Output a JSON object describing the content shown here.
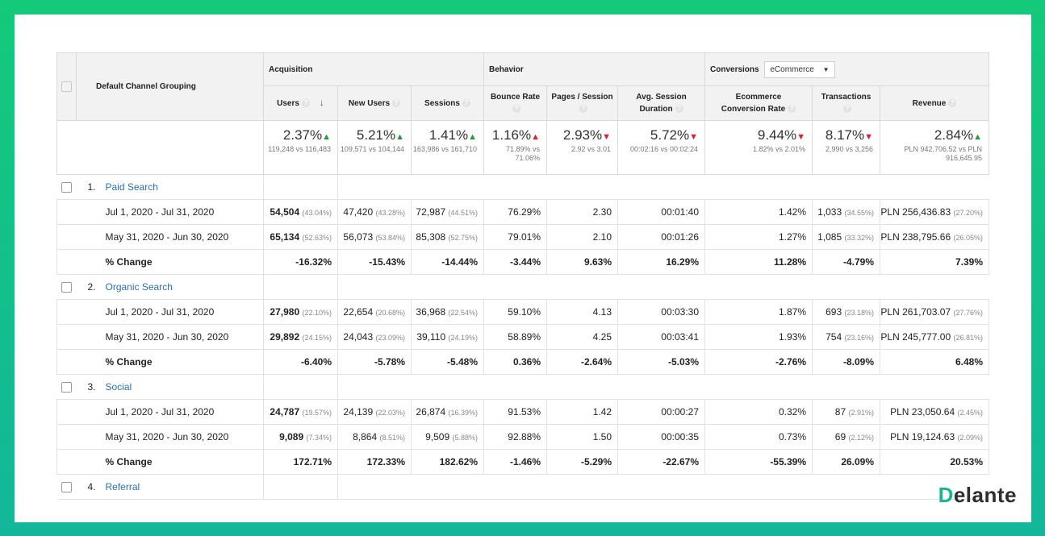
{
  "header": {
    "dimension": "Default Channel Grouping",
    "acquisition": "Acquisition",
    "behavior": "Behavior",
    "conversions": "Conversions",
    "conversions_select": "eCommerce",
    "columns": [
      "Users",
      "New Users",
      "Sessions",
      "Bounce Rate",
      "Pages / Session",
      "Avg. Session Duration",
      "Ecommerce Conversion Rate",
      "Transactions",
      "Revenue"
    ]
  },
  "totals": [
    {
      "value": "2.37%",
      "trend": "up",
      "detail": "119,248 vs 116,483"
    },
    {
      "value": "5.21%",
      "trend": "up",
      "detail": "109,571 vs 104,144"
    },
    {
      "value": "1.41%",
      "trend": "up",
      "detail": "163,986 vs 161,710"
    },
    {
      "value": "1.16%",
      "trend": "up-red",
      "detail": "71.89% vs 71.06%"
    },
    {
      "value": "2.93%",
      "trend": "down",
      "detail": "2.92 vs 3.01"
    },
    {
      "value": "5.72%",
      "trend": "down",
      "detail": "00:02:16 vs 00:02:24"
    },
    {
      "value": "9.44%",
      "trend": "down",
      "detail": "1.82% vs 2.01%"
    },
    {
      "value": "8.17%",
      "trend": "down",
      "detail": "2,990 vs 3,256"
    },
    {
      "value": "2.84%",
      "trend": "up",
      "detail": "PLN 942,706.52 vs PLN 916,645.95"
    }
  ],
  "groups": [
    {
      "index": "1.",
      "name": "Paid Search",
      "rows": [
        {
          "label": "Jul 1, 2020 - Jul 31, 2020",
          "users": "54,504",
          "users_pct": "(43.04%)",
          "new_users": "47,420",
          "new_users_pct": "(43.28%)",
          "sessions": "72,987",
          "sessions_pct": "(44.51%)",
          "bounce": "76.29%",
          "pps": "2.30",
          "dur": "00:01:40",
          "ecr": "1.42%",
          "trans": "1,033",
          "trans_pct": "(34.55%)",
          "rev": "PLN 256,436.83",
          "rev_pct": "(27.20%)"
        },
        {
          "label": "May 31, 2020 - Jun 30, 2020",
          "users": "65,134",
          "users_pct": "(52.63%)",
          "new_users": "56,073",
          "new_users_pct": "(53.84%)",
          "sessions": "85,308",
          "sessions_pct": "(52.75%)",
          "bounce": "79.01%",
          "pps": "2.10",
          "dur": "00:01:26",
          "ecr": "1.27%",
          "trans": "1,085",
          "trans_pct": "(33.32%)",
          "rev": "PLN 238,795.66",
          "rev_pct": "(26.05%)"
        }
      ],
      "change": {
        "label": "% Change",
        "values": [
          "-16.32%",
          "-15.43%",
          "-14.44%",
          "-3.44%",
          "9.63%",
          "16.29%",
          "11.28%",
          "-4.79%",
          "7.39%"
        ]
      }
    },
    {
      "index": "2.",
      "name": "Organic Search",
      "rows": [
        {
          "label": "Jul 1, 2020 - Jul 31, 2020",
          "users": "27,980",
          "users_pct": "(22.10%)",
          "new_users": "22,654",
          "new_users_pct": "(20.68%)",
          "sessions": "36,968",
          "sessions_pct": "(22.54%)",
          "bounce": "59.10%",
          "pps": "4.13",
          "dur": "00:03:30",
          "ecr": "1.87%",
          "trans": "693",
          "trans_pct": "(23.18%)",
          "rev": "PLN 261,703.07",
          "rev_pct": "(27.76%)"
        },
        {
          "label": "May 31, 2020 - Jun 30, 2020",
          "users": "29,892",
          "users_pct": "(24.15%)",
          "new_users": "24,043",
          "new_users_pct": "(23.09%)",
          "sessions": "39,110",
          "sessions_pct": "(24.19%)",
          "bounce": "58.89%",
          "pps": "4.25",
          "dur": "00:03:41",
          "ecr": "1.93%",
          "trans": "754",
          "trans_pct": "(23.16%)",
          "rev": "PLN 245,777.00",
          "rev_pct": "(26.81%)"
        }
      ],
      "change": {
        "label": "% Change",
        "values": [
          "-6.40%",
          "-5.78%",
          "-5.48%",
          "0.36%",
          "-2.64%",
          "-5.03%",
          "-2.76%",
          "-8.09%",
          "6.48%"
        ]
      }
    },
    {
      "index": "3.",
      "name": "Social",
      "rows": [
        {
          "label": "Jul 1, 2020 - Jul 31, 2020",
          "users": "24,787",
          "users_pct": "(19.57%)",
          "new_users": "24,139",
          "new_users_pct": "(22.03%)",
          "sessions": "26,874",
          "sessions_pct": "(16.39%)",
          "bounce": "91.53%",
          "pps": "1.42",
          "dur": "00:00:27",
          "ecr": "0.32%",
          "trans": "87",
          "trans_pct": "(2.91%)",
          "rev": "PLN 23,050.64",
          "rev_pct": "(2.45%)"
        },
        {
          "label": "May 31, 2020 - Jun 30, 2020",
          "users": "9,089",
          "users_pct": "(7.34%)",
          "new_users": "8,864",
          "new_users_pct": "(8.51%)",
          "sessions": "9,509",
          "sessions_pct": "(5.88%)",
          "bounce": "92.88%",
          "pps": "1.50",
          "dur": "00:00:35",
          "ecr": "0.73%",
          "trans": "69",
          "trans_pct": "(2.12%)",
          "rev": "PLN 19,124.63",
          "rev_pct": "(2.09%)"
        }
      ],
      "change": {
        "label": "% Change",
        "values": [
          "172.71%",
          "172.33%",
          "182.62%",
          "-1.46%",
          "-5.29%",
          "-22.67%",
          "-55.39%",
          "26.09%",
          "20.53%"
        ]
      }
    }
  ],
  "last_group": {
    "index": "4.",
    "name": "Referral"
  },
  "logo": {
    "first": "D",
    "rest": "elante"
  }
}
